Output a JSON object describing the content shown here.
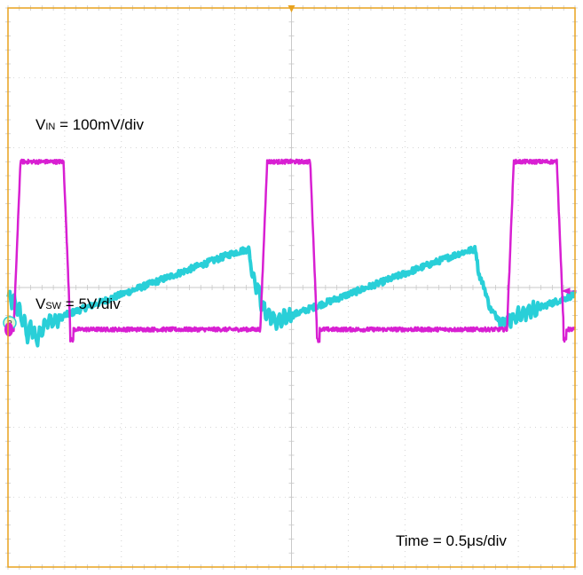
{
  "chart_data": {
    "type": "line",
    "title": "",
    "grid": true,
    "divisions": {
      "horizontal": 10,
      "vertical": 8
    },
    "colors": {
      "background": "#ffffff",
      "frame": "#e8a21e",
      "grid": "#c9c9c9",
      "ch_vin": "#29cfd8",
      "ch_vsw": "#d81fd2"
    },
    "series": [
      {
        "name": "VIN",
        "unit_per_div": "100mV/div",
        "x_div": [
          0.0,
          0.1,
          0.2,
          0.3,
          0.35,
          0.4,
          0.5,
          0.6,
          0.7,
          0.8,
          1.0,
          1.5,
          2.0,
          2.5,
          3.0,
          3.5,
          4.0,
          4.25,
          4.3,
          4.4,
          4.5,
          4.6,
          4.75,
          4.85,
          5.0,
          5.5,
          6.0,
          6.5,
          7.0,
          7.5,
          8.0,
          8.25,
          8.3,
          8.4,
          8.5,
          8.6,
          8.75,
          8.85,
          9.0,
          9.5,
          10.0
        ],
        "y_div_from_center": [
          -0.15,
          -0.2,
          -0.35,
          -0.55,
          -0.7,
          -0.55,
          -0.75,
          -0.6,
          -0.45,
          -0.5,
          -0.4,
          -0.25,
          -0.1,
          0.05,
          0.2,
          0.35,
          0.5,
          0.55,
          0.2,
          0.0,
          -0.3,
          -0.4,
          -0.5,
          -0.45,
          -0.4,
          -0.25,
          -0.1,
          0.05,
          0.2,
          0.35,
          0.5,
          0.55,
          0.2,
          0.0,
          -0.3,
          -0.4,
          -0.5,
          -0.45,
          -0.4,
          -0.25,
          -0.1
        ]
      },
      {
        "name": "VSW",
        "unit_per_div": "5V/div",
        "period_div": 4.35,
        "first_rise_div": 0.1,
        "pulse_width_div": 1.0,
        "high_div_from_center": 1.8,
        "low_div_from_center": -0.6
      }
    ]
  },
  "labels": {
    "vin": {
      "main": "V",
      "sub": "IN",
      "rest": " = 100mV/div"
    },
    "vsw": {
      "main": "V",
      "sub": "SW",
      "rest": " = 5V/div"
    },
    "time": "Time = 0.5μs/div"
  },
  "markers": {
    "ch2": "2",
    "trigger_icon": "trigger-arrow",
    "ch1_icon": "channel-marker"
  }
}
